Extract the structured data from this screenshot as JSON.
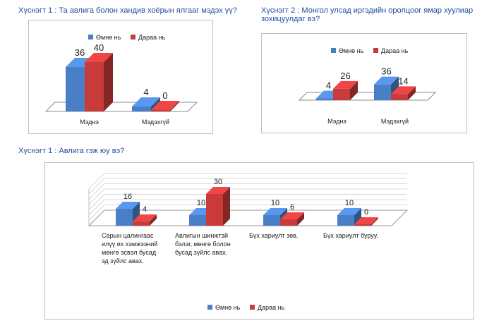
{
  "colors": {
    "before": "#4a7fc8",
    "after": "#c93a3a",
    "title": "#1f4e9c"
  },
  "chart_data": [
    {
      "type": "bar",
      "title": "Хүснэгт 1 : Та авлига болон хандив хоёрын ялгааг мэдэх үү?",
      "categories": [
        "Мэднэ",
        "Мэдэхгүй"
      ],
      "series": [
        {
          "name": "Өмнө нь",
          "values": [
            36,
            4
          ]
        },
        {
          "name": "Дараа нь",
          "values": [
            40,
            0
          ]
        }
      ],
      "ylim": [
        0,
        40
      ],
      "grid": false,
      "legend": "top-right"
    },
    {
      "type": "bar",
      "title": "Хүснэгт 2 : Монгол улсад иргэдийн оролцоог ямар хуулиар зохицуулдаг вэ?",
      "categories": [
        "Мэднэ",
        "Мэдэхгүй"
      ],
      "series": [
        {
          "name": "Өмнө нь",
          "values": [
            4,
            36
          ]
        },
        {
          "name": "Дараа нь",
          "values": [
            26,
            14
          ]
        }
      ],
      "ylim": [
        0,
        40
      ],
      "grid": false,
      "legend": "top-right"
    },
    {
      "type": "bar",
      "title": "Хүснэгт 1 : Авлига гэж юу вэ?",
      "categories": [
        [
          "Сарын цалингаас",
          "илүү их хэмжээний",
          "мөнгө эсвэл бусад",
          "эд зүйлс авах."
        ],
        [
          "Авлигын шинжтэй",
          "бэлэг, мөнгө болон",
          "бусад зүйлс авах."
        ],
        [
          "Бүх хариулт зөв."
        ],
        [
          "Бүх хариулт буруу."
        ]
      ],
      "series": [
        {
          "name": "Өмнө нь",
          "values": [
            16,
            10,
            10,
            10
          ]
        },
        {
          "name": "Дараа нь",
          "values": [
            4,
            30,
            6,
            0
          ]
        }
      ],
      "ylim": [
        0,
        35
      ],
      "grid": true,
      "legend": "bottom"
    }
  ]
}
